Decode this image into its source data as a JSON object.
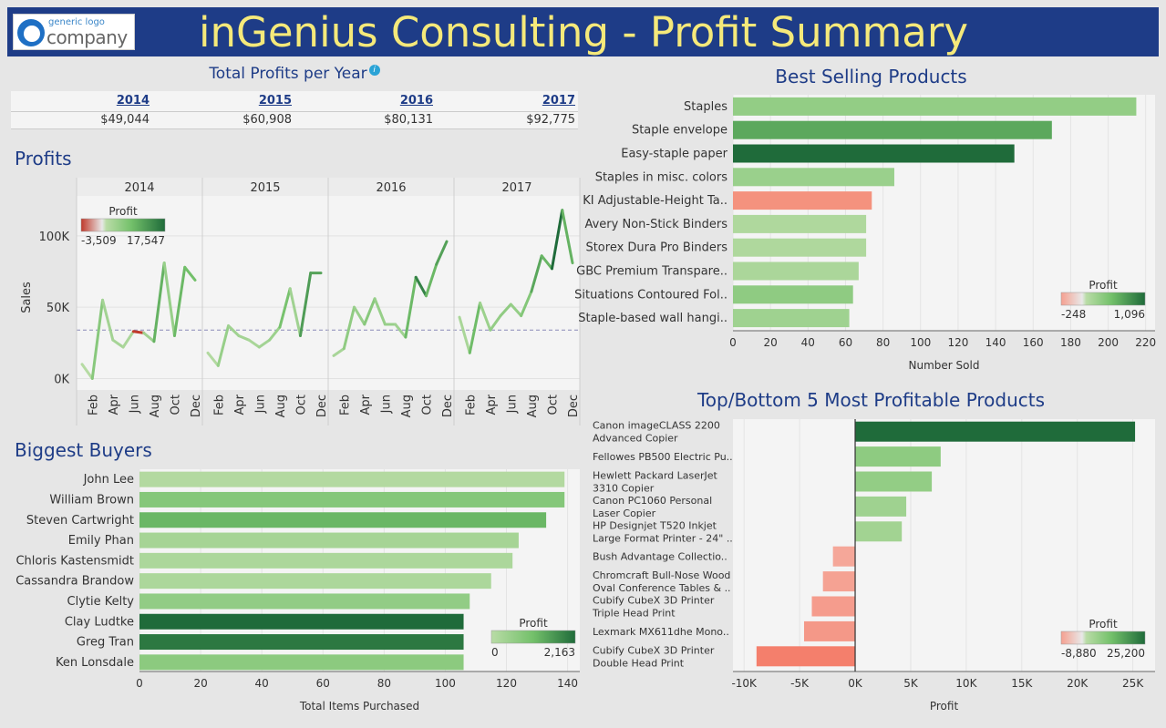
{
  "header": {
    "title": "inGenius Consulting - Profit Summary",
    "logo_top": "generic logo",
    "logo_bottom": "company"
  },
  "colors": {
    "header_bg": "#1e3c87",
    "title": "#f5e97a",
    "section_title": "#1e3c87",
    "positive_low": "#b9dca6",
    "positive_high": "#1f6b3a",
    "negative": "#f47f6c"
  },
  "total_profits": {
    "title": "Total Profits per Year",
    "info_icon": "info-icon",
    "years": [
      "2014",
      "2015",
      "2016",
      "2017"
    ],
    "values": [
      "$49,044",
      "$60,908",
      "$80,131",
      "$92,775"
    ]
  },
  "chart_data": [
    {
      "id": "profits",
      "type": "line",
      "title": "Profits",
      "ylabel": "Sales",
      "ylim": [
        -8000,
        128000
      ],
      "yticks": [
        0,
        50000,
        100000
      ],
      "ytick_labels": [
        "0K",
        "50K",
        "100K"
      ],
      "reference_line": 34000,
      "panels": [
        "2014",
        "2015",
        "2016",
        "2017"
      ],
      "month_labels": [
        "Feb",
        "Apr",
        "Jun",
        "Aug",
        "Oct",
        "Dec"
      ],
      "series": [
        {
          "values": [
            10000,
            0,
            55000,
            27000,
            22000,
            33000,
            32000,
            26000,
            81000,
            30000,
            78000,
            69000
          ],
          "profit": [
            800,
            400,
            6200,
            2800,
            2400,
            1800,
            -1200,
            3000,
            10200,
            4200,
            9500,
            8800
          ]
        },
        {
          "values": [
            18000,
            9000,
            37000,
            30000,
            27000,
            22000,
            27000,
            36000,
            63000,
            30000,
            74000,
            74000
          ],
          "profit": [
            -3509,
            900,
            4200,
            3100,
            2800,
            2000,
            2700,
            3600,
            8200,
            3100,
            12500,
            11800
          ]
        },
        {
          "values": [
            16000,
            21000,
            50000,
            38000,
            56000,
            38000,
            38000,
            29000,
            71000,
            58000,
            80000,
            96000
          ],
          "profit": [
            1800,
            2100,
            5200,
            4000,
            6200,
            4200,
            4100,
            3100,
            9400,
            15200,
            9600,
            12000
          ]
        },
        {
          "values": [
            43000,
            18000,
            53000,
            34000,
            44000,
            52000,
            44000,
            61000,
            86000,
            77000,
            118000,
            81000
          ],
          "profit": [
            4800,
            2000,
            9200,
            3600,
            4700,
            5200,
            4500,
            6600,
            11400,
            9800,
            17547,
            10200
          ]
        }
      ],
      "legend": {
        "title": "Profit",
        "min": "-3,509",
        "max": "17,547",
        "min_value": -3509,
        "max_value": 17547
      }
    },
    {
      "id": "best-selling",
      "type": "bar",
      "title": "Best Selling Products",
      "xlabel": "Number Sold",
      "xlim": [
        0,
        225
      ],
      "xticks": [
        0,
        20,
        40,
        60,
        80,
        100,
        120,
        140,
        160,
        180,
        200,
        220
      ],
      "categories": [
        "Staples",
        "Staple envelope",
        "Easy-staple paper",
        "Staples in misc. colors",
        "KI Adjustable-Height Ta..",
        "Avery Non-Stick Binders",
        "Storex Dura Pro Binders",
        "GBC Premium Transpare..",
        "Situations Contoured Fol..",
        "Staple-based wall hangi.."
      ],
      "values": [
        215,
        170,
        150,
        86,
        74,
        71,
        71,
        67,
        64,
        62
      ],
      "profit": [
        300,
        700,
        1096,
        240,
        -248,
        80,
        80,
        110,
        330,
        200
      ],
      "legend": {
        "title": "Profit",
        "min": "-248",
        "max": "1,096",
        "min_value": -248,
        "max_value": 1096
      }
    },
    {
      "id": "biggest-buyers",
      "type": "bar",
      "title": "Biggest Buyers",
      "xlabel": "Total Items Purchased",
      "xlim": [
        0,
        144
      ],
      "xticks": [
        0,
        20,
        40,
        60,
        80,
        100,
        120,
        140
      ],
      "categories": [
        "John Lee",
        "William Brown",
        "Steven Cartwright",
        "Emily Phan",
        "Chloris Kastensmidt",
        "Cassandra Brandow",
        "Clytie Kelty",
        "Clay Ludtke",
        "Greg Tran",
        "Ken Lonsdale"
      ],
      "values": [
        139,
        139,
        133,
        124,
        122,
        115,
        108,
        106,
        106,
        106
      ],
      "profit": [
        100,
        800,
        1200,
        300,
        200,
        200,
        600,
        2163,
        2000,
        700
      ],
      "legend": {
        "title": "Profit",
        "min": "0",
        "max": "2,163",
        "min_value": 0,
        "max_value": 2163
      }
    },
    {
      "id": "top-bottom",
      "type": "bar",
      "title": "Top/Bottom 5 Most Profitable Products",
      "xlabel": "Profit",
      "xlim": [
        -11000,
        27000
      ],
      "xticks": [
        -10000,
        -5000,
        0,
        5000,
        10000,
        15000,
        20000,
        25000
      ],
      "xtick_labels": [
        "-10K",
        "-5K",
        "0K",
        "5K",
        "10K",
        "15K",
        "20K",
        "25K"
      ],
      "categories": [
        [
          "Canon imageCLASS 2200",
          "Advanced Copier"
        ],
        [
          "Fellowes PB500 Electric Pu.."
        ],
        [
          "Hewlett Packard LaserJet",
          "3310 Copier"
        ],
        [
          "Canon PC1060 Personal",
          "Laser Copier"
        ],
        [
          "HP Designjet T520 Inkjet",
          "Large Format Printer - 24\" .."
        ],
        [
          "Bush Advantage Collectio.."
        ],
        [
          "Chromcraft Bull-Nose Wood",
          "Oval Conference Tables & .."
        ],
        [
          "Cubify CubeX 3D Printer",
          "Triple Head Print"
        ],
        [
          "Lexmark MX611dhe Mono.."
        ],
        [
          "Cubify CubeX 3D Printer",
          "Double Head Print"
        ]
      ],
      "values": [
        25200,
        7700,
        6900,
        4600,
        4200,
        -2000,
        -2900,
        -3900,
        -4600,
        -8880
      ],
      "legend": {
        "title": "Profit",
        "min": "-8,880",
        "max": "25,200",
        "min_value": -8880,
        "max_value": 25200
      }
    }
  ]
}
